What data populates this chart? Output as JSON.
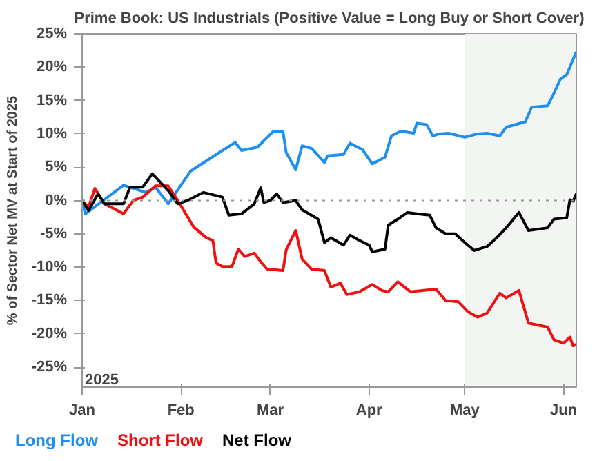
{
  "chart_data": {
    "type": "line",
    "title": "Prime Book: US Industrials (Positive Value = Long Buy or Short Cover)",
    "ylabel": "% of Sector Net MV at Start of 2025",
    "annotations": [
      "2025"
    ],
    "xlim": [
      "2025-01-01",
      "2025-06-05"
    ],
    "xticks": [
      {
        "value": "2025-01-01",
        "label": "Jan"
      },
      {
        "value": "2025-02-01",
        "label": "Feb"
      },
      {
        "value": "2025-03-01",
        "label": "Mar"
      },
      {
        "value": "2025-04-01",
        "label": "Apr"
      },
      {
        "value": "2025-05-01",
        "label": "May"
      },
      {
        "value": "2025-06-01",
        "label": "Jun"
      }
    ],
    "ylim": [
      -28,
      25
    ],
    "yticks": [
      {
        "value": -25,
        "label": "-25%"
      },
      {
        "value": -20,
        "label": "-20%"
      },
      {
        "value": -15,
        "label": "-15%"
      },
      {
        "value": -10,
        "label": "-10%"
      },
      {
        "value": -5,
        "label": "-5%"
      },
      {
        "value": 0,
        "label": "0%"
      },
      {
        "value": 5,
        "label": "5%"
      },
      {
        "value": 10,
        "label": "10%"
      },
      {
        "value": 15,
        "label": "15%"
      },
      {
        "value": 20,
        "label": "20%"
      },
      {
        "value": 25,
        "label": "25%"
      }
    ],
    "grid": false,
    "legend": "bottom",
    "line_style": "solid",
    "ref_lines": [
      {
        "axis": "y",
        "value": 0,
        "label": null,
        "color": "#999999",
        "line_style": "dotted"
      }
    ],
    "bands": [
      {
        "axis": "x",
        "from": "2025-05-01",
        "to": "2025-06-05",
        "label": null,
        "color": "#f3f5f3"
      }
    ],
    "series": [
      {
        "name": "Long Flow",
        "color": "#1e8ff0",
        "x": [
          "2025-01-01",
          "2025-01-02",
          "2025-01-14",
          "2025-01-21",
          "2025-01-24",
          "2025-01-28",
          "2025-02-04",
          "2025-02-13",
          "2025-02-18",
          "2025-02-20",
          "2025-02-25",
          "2025-03-02",
          "2025-03-05",
          "2025-03-06",
          "2025-03-09",
          "2025-03-11",
          "2025-03-14",
          "2025-03-18",
          "2025-03-19",
          "2025-03-24",
          "2025-03-26",
          "2025-03-30",
          "2025-04-02",
          "2025-04-06",
          "2025-04-08",
          "2025-04-11",
          "2025-04-15",
          "2025-04-16",
          "2025-04-19",
          "2025-04-21",
          "2025-04-23",
          "2025-04-26",
          "2025-05-01",
          "2025-05-05",
          "2025-05-08",
          "2025-05-12",
          "2025-05-14",
          "2025-05-20",
          "2025-05-22",
          "2025-05-27",
          "2025-05-29",
          "2025-05-31",
          "2025-06-02",
          "2025-06-05"
        ],
        "values": [
          0,
          -2,
          2.3,
          1.2,
          2,
          -0.5,
          4.4,
          7.2,
          8.7,
          7.5,
          8,
          10.4,
          10.3,
          7.2,
          4.6,
          8.2,
          7.8,
          5.7,
          6.7,
          6.9,
          8.6,
          7.6,
          5.5,
          6.5,
          9.7,
          10.4,
          10.1,
          11.6,
          11.4,
          9.7,
          10,
          10.1,
          9.5,
          10,
          10.1,
          9.7,
          11,
          11.8,
          14,
          14.2,
          16.1,
          18.2,
          18.9,
          22.3
        ]
      },
      {
        "name": "Short Flow",
        "color": "#f01010",
        "x": [
          "2025-01-01",
          "2025-01-03",
          "2025-01-05",
          "2025-01-08",
          "2025-01-14",
          "2025-01-17",
          "2025-01-20",
          "2025-01-24",
          "2025-01-28",
          "2025-01-31",
          "2025-02-05",
          "2025-02-09",
          "2025-02-11",
          "2025-02-12",
          "2025-02-14",
          "2025-02-17",
          "2025-02-19",
          "2025-02-21",
          "2025-02-24",
          "2025-02-26",
          "2025-02-28",
          "2025-03-05",
          "2025-03-06",
          "2025-03-09",
          "2025-03-11",
          "2025-03-14",
          "2025-03-18",
          "2025-03-20",
          "2025-03-23",
          "2025-03-25",
          "2025-03-29",
          "2025-04-02",
          "2025-04-05",
          "2025-04-07",
          "2025-04-10",
          "2025-04-14",
          "2025-04-22",
          "2025-04-25",
          "2025-04-29",
          "2025-05-02",
          "2025-05-05",
          "2025-05-08",
          "2025-05-12",
          "2025-05-14",
          "2025-05-18",
          "2025-05-21",
          "2025-05-27",
          "2025-05-29",
          "2025-06-01",
          "2025-06-03",
          "2025-06-04",
          "2025-06-05"
        ],
        "values": [
          0,
          -1,
          1.8,
          -0.5,
          -2,
          0,
          0.5,
          2.2,
          2.2,
          0,
          -4,
          -5.6,
          -6,
          -9.4,
          -9.9,
          -9.9,
          -7.3,
          -8.4,
          -7.9,
          -9.2,
          -10.3,
          -10.5,
          -7.4,
          -4.5,
          -8.8,
          -10.3,
          -10.5,
          -13,
          -12.4,
          -14.1,
          -13.7,
          -12.6,
          -13.5,
          -13.7,
          -12.2,
          -13.7,
          -13.3,
          -15,
          -15.2,
          -16.7,
          -17.5,
          -16.9,
          -13.9,
          -14.6,
          -13.5,
          -18.4,
          -19,
          -20.9,
          -21.4,
          -20.5,
          -21.8,
          -21.6
        ]
      },
      {
        "name": "Net Flow",
        "color": "#000000",
        "x": [
          "2025-01-01",
          "2025-01-03",
          "2025-01-06",
          "2025-01-08",
          "2025-01-14",
          "2025-01-16",
          "2025-01-20",
          "2025-01-23",
          "2025-01-26",
          "2025-01-28",
          "2025-01-31",
          "2025-02-03",
          "2025-02-08",
          "2025-02-14",
          "2025-02-16",
          "2025-02-20",
          "2025-02-24",
          "2025-02-26",
          "2025-02-27",
          "2025-03-01",
          "2025-03-03",
          "2025-03-05",
          "2025-03-09",
          "2025-03-11",
          "2025-03-16",
          "2025-03-18",
          "2025-03-20",
          "2025-03-24",
          "2025-03-26",
          "2025-03-29",
          "2025-04-01",
          "2025-04-02",
          "2025-04-06",
          "2025-04-07",
          "2025-04-10",
          "2025-04-13",
          "2025-04-16",
          "2025-04-20",
          "2025-04-22",
          "2025-04-25",
          "2025-04-28",
          "2025-05-01",
          "2025-05-04",
          "2025-05-08",
          "2025-05-11",
          "2025-05-14",
          "2025-05-18",
          "2025-05-21",
          "2025-05-27",
          "2025-05-29",
          "2025-06-02",
          "2025-06-03",
          "2025-06-04",
          "2025-06-05"
        ],
        "values": [
          0,
          -1.5,
          1,
          -0.5,
          -0.5,
          2,
          2,
          4,
          2.5,
          1.5,
          -0.5,
          0,
          1.2,
          0.5,
          -2.2,
          -2,
          -0.5,
          1.9,
          -0.3,
          0,
          1,
          -0.3,
          0,
          -1.4,
          -2.8,
          -6.3,
          -5.6,
          -6.7,
          -5.2,
          -6,
          -6.7,
          -7.7,
          -7.3,
          -3.7,
          -2.8,
          -1.8,
          -2,
          -2.2,
          -4.1,
          -5,
          -5,
          -6.3,
          -7.5,
          -6.9,
          -5.6,
          -4.1,
          -1.8,
          -4.5,
          -4.1,
          -2.8,
          -2.6,
          0.1,
          -0.1,
          1
        ]
      }
    ]
  }
}
